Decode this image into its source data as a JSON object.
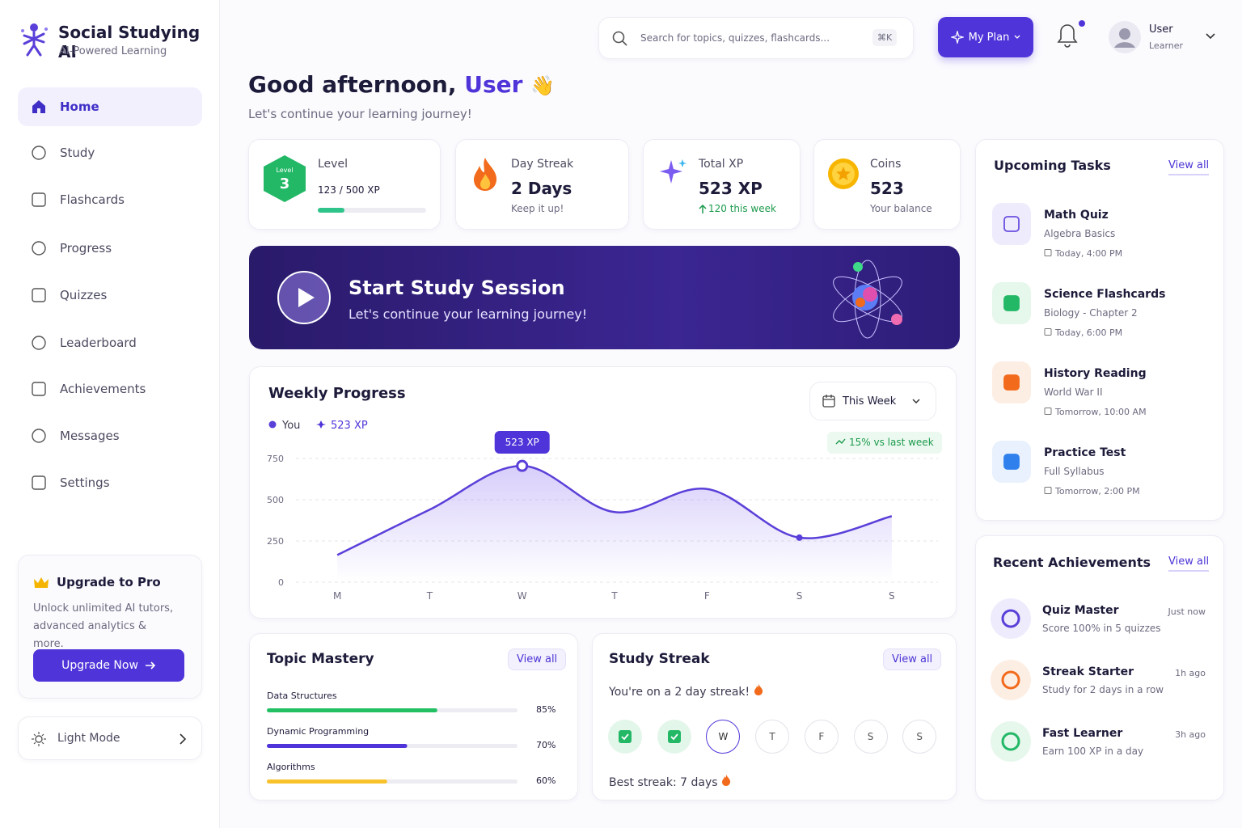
{
  "sidebar": {
    "brand": {
      "title": "Social Studying AI",
      "subtitle": "AI-Powered Learning"
    },
    "nav": [
      "Home",
      "Study",
      "Flashcards",
      "Progress",
      "Quizzes",
      "Leaderboard",
      "Achievements",
      "Messages",
      "Settings"
    ],
    "upgrade": {
      "title": "Upgrade to Pro",
      "text": "Unlock unlimited AI tutors, advanced analytics & more.",
      "button": "Upgrade Now"
    },
    "theme": "Light Mode"
  },
  "header": {
    "search": "Search for topics, quizzes, flashcards...",
    "shortcut": "⌘K",
    "plan": "My Plan",
    "user": {
      "name": "User",
      "role": "Learner"
    }
  },
  "greeting": {
    "text": "Good afternoon,",
    "name": "User",
    "emoji": "👋",
    "subtitle": "Let's continue your learning journey!"
  },
  "stats": {
    "level": {
      "label": "Level",
      "badge_label": "Level",
      "badge_value": 3,
      "xp_text": "123 / 500 XP",
      "xp": 123,
      "xp_max": 500
    },
    "streak": {
      "label": "Day Streak",
      "value": "2 Days",
      "note": "Keep it up!"
    },
    "xp": {
      "label": "Total XP",
      "value": "523 XP",
      "note": "120 this week"
    },
    "coins": {
      "label": "Coins",
      "value": 523,
      "note": "Your balance"
    }
  },
  "banner": {
    "title": "Start Study Session",
    "subtitle": "Let's continue your learning journey!"
  },
  "chart_data": {
    "type": "line",
    "title": "Weekly Progress",
    "legend_note": "523 XP",
    "period": "This Week",
    "comparison": "15% vs last week",
    "tooltip": "523 XP",
    "categories": [
      "M",
      "T",
      "W",
      "T",
      "F",
      "S",
      "S"
    ],
    "series": [
      {
        "name": "You",
        "color": "#5b3fd9",
        "values": [
          165,
          440,
          705,
          425,
          565,
          270,
          400
        ]
      }
    ],
    "ylim": [
      0,
      750
    ],
    "yticks": [
      0,
      250,
      500,
      750
    ],
    "grid": true
  },
  "tasks": {
    "title": "Upcoming Tasks",
    "link": "View all",
    "items": [
      {
        "title": "Math Quiz",
        "subtitle": "Algebra Basics",
        "time": "Today, 4:00 PM"
      },
      {
        "title": "Science Flashcards",
        "subtitle": "Biology - Chapter 2",
        "time": "Today, 6:00 PM"
      },
      {
        "title": "History Reading",
        "subtitle": "World War II",
        "time": "Tomorrow, 10:00 AM"
      },
      {
        "title": "Practice Test",
        "subtitle": "Full Syllabus",
        "time": "Tomorrow, 2:00 PM"
      }
    ]
  },
  "achievements": {
    "title": "Recent Achievements",
    "link": "View all",
    "items": [
      {
        "title": "Quiz Master",
        "subtitle": "Score 100% in 5 quizzes",
        "time": "Just now"
      },
      {
        "title": "Streak Starter",
        "subtitle": "Study for 2 days in a row",
        "time": "1h ago"
      },
      {
        "title": "Fast Learner",
        "subtitle": "Earn 100 XP in a day",
        "time": "3h ago"
      }
    ]
  },
  "topics": {
    "title": "Topic Mastery",
    "link": "View all",
    "items": [
      {
        "name": "Data Structures",
        "value": 85,
        "value_label": "85%"
      },
      {
        "name": "Dynamic Programming",
        "value": 70,
        "value_label": "70%"
      },
      {
        "name": "Algorithms",
        "value": 60,
        "value_label": "60%"
      }
    ]
  },
  "streak": {
    "title": "Study Streak",
    "link": "View all",
    "message": "You're on a 2 day streak!",
    "days": [
      null,
      null,
      "W",
      "T",
      "F",
      "S",
      "S"
    ],
    "best": "Best streak: 7 days"
  }
}
